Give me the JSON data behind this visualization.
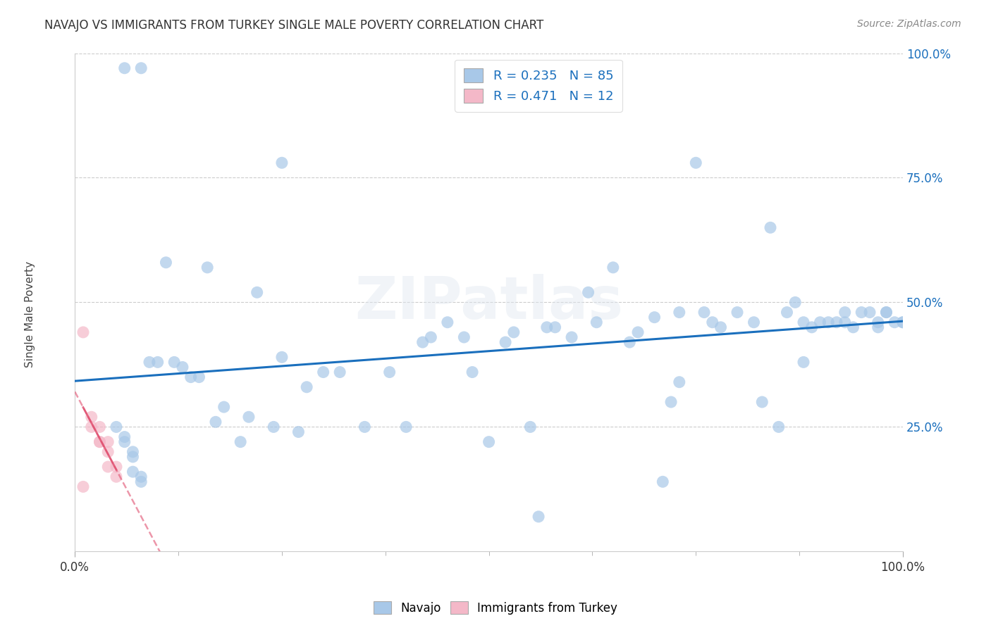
{
  "title": "NAVAJO VS IMMIGRANTS FROM TURKEY SINGLE MALE POVERTY CORRELATION CHART",
  "source": "Source: ZipAtlas.com",
  "ylabel": "Single Male Poverty",
  "navajo_R": 0.235,
  "navajo_N": 85,
  "turkey_R": 0.471,
  "turkey_N": 12,
  "navajo_color": "#a8c8e8",
  "turkey_color": "#f4b8c8",
  "trend_navajo_color": "#1a6fbd",
  "trend_turkey_color": "#e05070",
  "background_color": "#ffffff",
  "grid_color": "#cccccc",
  "title_color": "#333333",
  "legend_r_color": "#1a6fbd",
  "navajo_x": [
    0.06,
    0.08,
    0.25,
    0.05,
    0.06,
    0.06,
    0.07,
    0.07,
    0.07,
    0.08,
    0.08,
    0.09,
    0.1,
    0.11,
    0.12,
    0.13,
    0.14,
    0.15,
    0.16,
    0.17,
    0.18,
    0.2,
    0.21,
    0.22,
    0.24,
    0.25,
    0.27,
    0.28,
    0.3,
    0.32,
    0.35,
    0.38,
    0.4,
    0.42,
    0.43,
    0.45,
    0.48,
    0.5,
    0.52,
    0.55,
    0.57,
    0.6,
    0.62,
    0.63,
    0.65,
    0.67,
    0.68,
    0.7,
    0.72,
    0.73,
    0.75,
    0.76,
    0.77,
    0.78,
    0.8,
    0.82,
    0.83,
    0.85,
    0.86,
    0.87,
    0.88,
    0.89,
    0.9,
    0.91,
    0.92,
    0.93,
    0.94,
    0.95,
    0.96,
    0.97,
    0.97,
    0.98,
    0.99,
    1.0,
    1.0,
    0.47,
    0.53,
    0.58,
    0.73,
    0.88,
    0.56,
    0.71,
    0.84,
    0.93,
    0.98
  ],
  "navajo_y": [
    0.97,
    0.97,
    0.78,
    0.25,
    0.23,
    0.22,
    0.2,
    0.19,
    0.16,
    0.15,
    0.14,
    0.38,
    0.38,
    0.58,
    0.38,
    0.37,
    0.35,
    0.35,
    0.57,
    0.26,
    0.29,
    0.22,
    0.27,
    0.52,
    0.25,
    0.39,
    0.24,
    0.33,
    0.36,
    0.36,
    0.25,
    0.36,
    0.25,
    0.42,
    0.43,
    0.46,
    0.36,
    0.22,
    0.42,
    0.25,
    0.45,
    0.43,
    0.52,
    0.46,
    0.57,
    0.42,
    0.44,
    0.47,
    0.3,
    0.48,
    0.78,
    0.48,
    0.46,
    0.45,
    0.48,
    0.46,
    0.3,
    0.25,
    0.48,
    0.5,
    0.46,
    0.45,
    0.46,
    0.46,
    0.46,
    0.46,
    0.45,
    0.48,
    0.48,
    0.46,
    0.45,
    0.48,
    0.46,
    0.46,
    0.46,
    0.43,
    0.44,
    0.45,
    0.34,
    0.38,
    0.07,
    0.14,
    0.65,
    0.48,
    0.48
  ],
  "turkey_x": [
    0.01,
    0.01,
    0.02,
    0.02,
    0.03,
    0.03,
    0.03,
    0.04,
    0.04,
    0.04,
    0.05,
    0.05
  ],
  "turkey_y": [
    0.44,
    0.13,
    0.27,
    0.25,
    0.25,
    0.22,
    0.22,
    0.22,
    0.2,
    0.17,
    0.17,
    0.15
  ],
  "watermark": "ZIPatlas",
  "xtick_labels": [
    "0.0%",
    "100.0%"
  ],
  "ytick_labels": [
    "25.0%",
    "50.0%",
    "75.0%",
    "100.0%"
  ],
  "ytick_values": [
    0.25,
    0.5,
    0.75,
    1.0
  ]
}
